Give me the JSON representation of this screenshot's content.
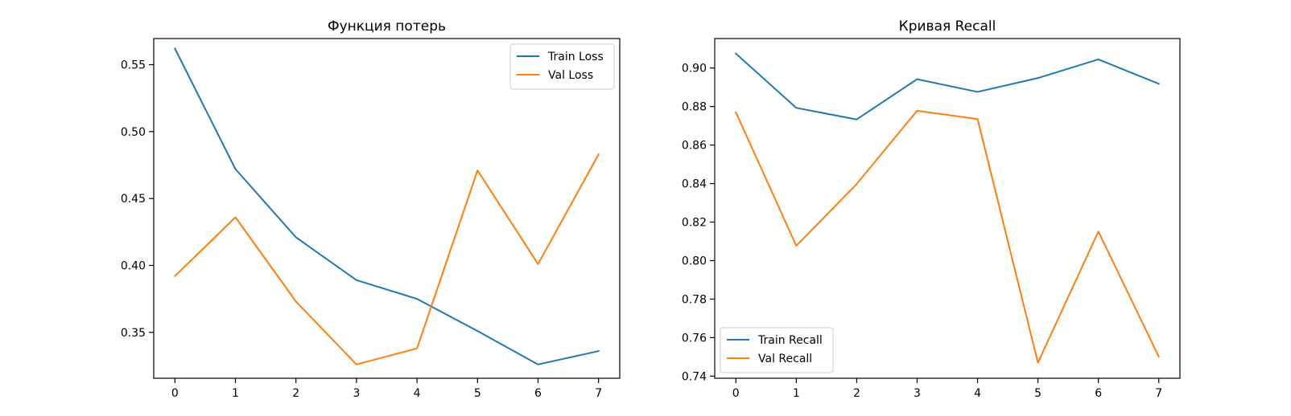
{
  "chart_data": [
    {
      "type": "line",
      "title": "Функция потерь",
      "xlabel": "",
      "ylabel": "",
      "x": [
        0,
        1,
        2,
        3,
        4,
        5,
        6,
        7
      ],
      "xlim": [
        -0.35,
        7.35
      ],
      "ylim": [
        0.3157,
        0.5695
      ],
      "xticks": [
        0,
        1,
        2,
        3,
        4,
        5,
        6,
        7
      ],
      "yticks": [
        0.35,
        0.4,
        0.45,
        0.5,
        0.55
      ],
      "ytick_labels": [
        "0.35",
        "0.40",
        "0.45",
        "0.50",
        "0.55"
      ],
      "grid": false,
      "legend_position": "top-right",
      "series": [
        {
          "name": "Train Loss",
          "color": "#1f77b4",
          "values": [
            0.562,
            0.472,
            0.421,
            0.389,
            0.375,
            0.351,
            0.326,
            0.336
          ]
        },
        {
          "name": "Val Loss",
          "color": "#ff7f0e",
          "values": [
            0.392,
            0.436,
            0.373,
            0.326,
            0.338,
            0.471,
            0.401,
            0.483
          ]
        }
      ]
    },
    {
      "type": "line",
      "title": "Кривая Recall",
      "xlabel": "",
      "ylabel": "",
      "x": [
        0,
        1,
        2,
        3,
        4,
        5,
        6,
        7
      ],
      "xlim": [
        -0.35,
        7.35
      ],
      "ylim": [
        0.7389,
        0.9153
      ],
      "xticks": [
        0,
        1,
        2,
        3,
        4,
        5,
        6,
        7
      ],
      "yticks": [
        0.74,
        0.76,
        0.78,
        0.8,
        0.82,
        0.84,
        0.86,
        0.88,
        0.9
      ],
      "ytick_labels": [
        "0.74",
        "0.76",
        "0.78",
        "0.80",
        "0.82",
        "0.84",
        "0.86",
        "0.88",
        "0.90"
      ],
      "grid": false,
      "legend_position": "bottom-left",
      "series": [
        {
          "name": "Train Recall",
          "color": "#1f77b4",
          "values": [
            0.9075,
            0.8793,
            0.8733,
            0.8942,
            0.8876,
            0.8948,
            0.9045,
            0.8918
          ]
        },
        {
          "name": "Val Recall",
          "color": "#ff7f0e",
          "values": [
            0.877,
            0.8077,
            0.8398,
            0.8778,
            0.8735,
            0.747,
            0.8151,
            0.7501
          ]
        }
      ]
    }
  ]
}
